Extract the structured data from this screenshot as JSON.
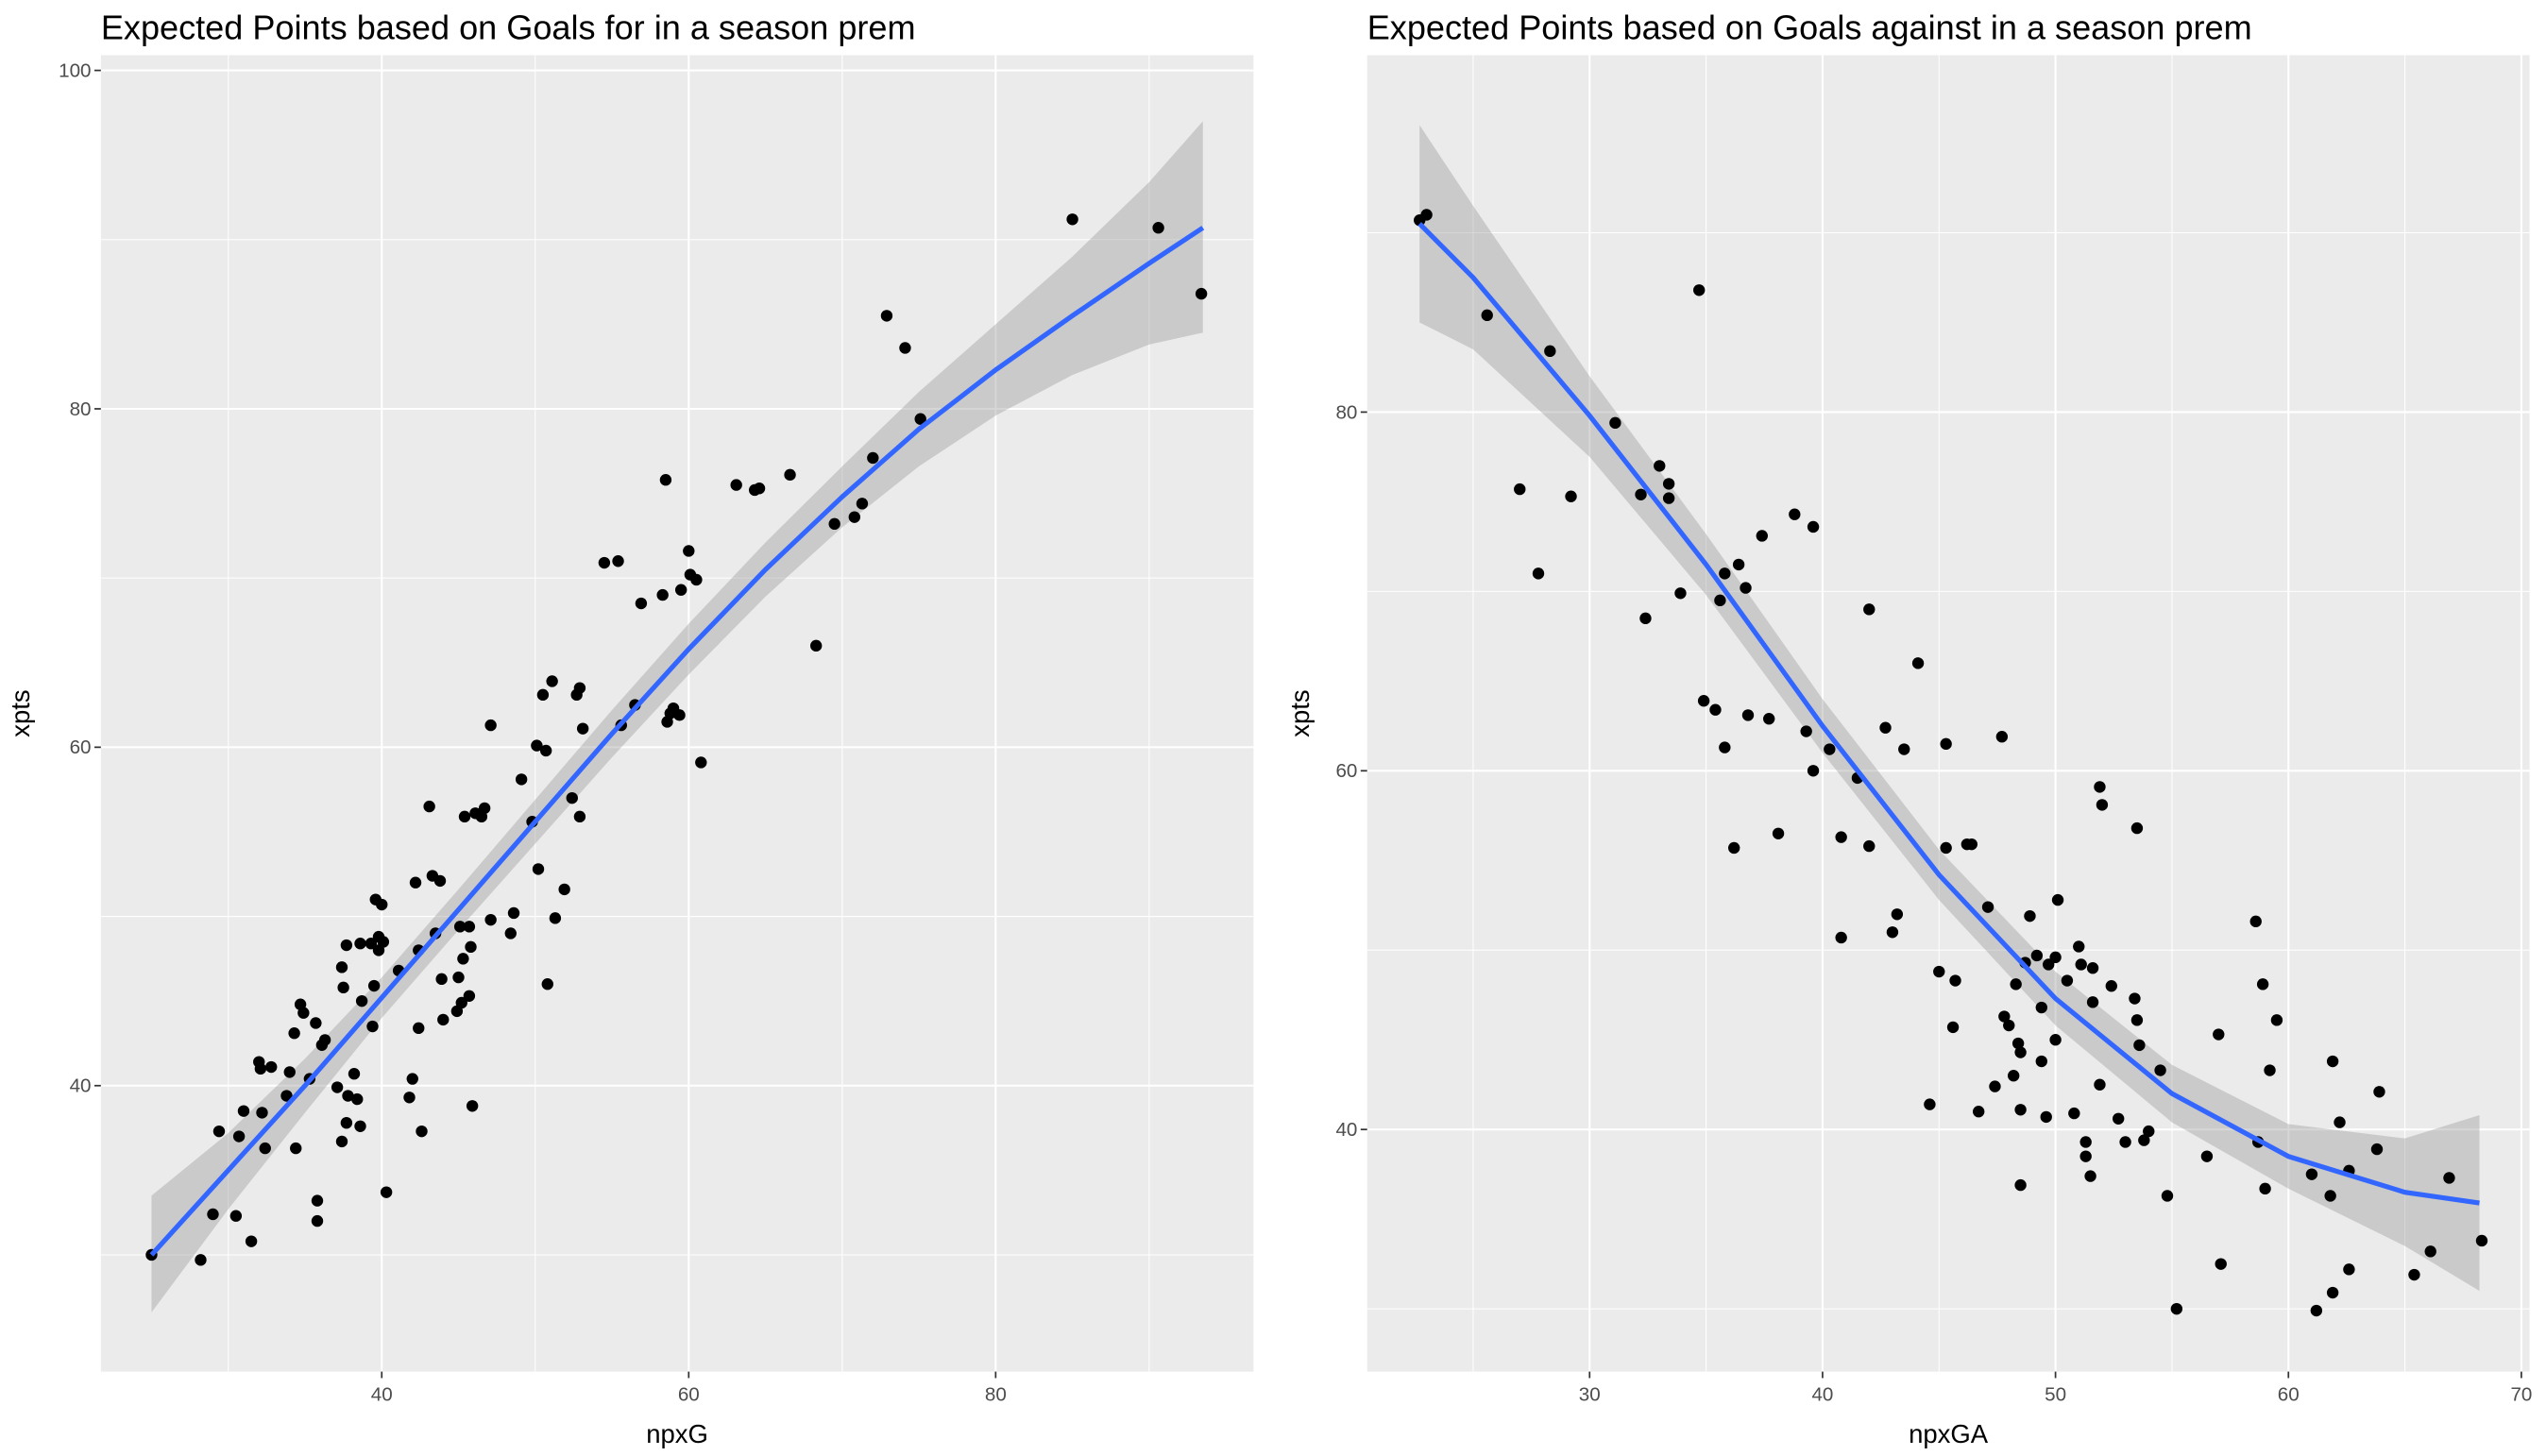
{
  "chart_data": [
    {
      "type": "scatter",
      "title": "Expected Points based on Goals for in a season prem",
      "x_label": "npxG",
      "y_label": "xpts",
      "xlim": [
        21.7,
        96.8
      ],
      "ylim": [
        23.1,
        100.9
      ],
      "xticks": [
        40,
        60,
        80
      ],
      "yticks": [
        40,
        60,
        80,
        100
      ],
      "x_minor_grid": [
        30,
        50,
        70,
        90
      ],
      "y_minor_grid": [
        30,
        50,
        70,
        90
      ],
      "point_color": "#000000",
      "line_color": "#3366ff",
      "band_color": "#999999",
      "panel_color": "#ebebeb",
      "x": [
        25.0,
        28.2,
        29.0,
        29.4,
        30.5,
        30.7,
        31.0,
        31.5,
        32.0,
        32.2,
        32.4,
        32.1,
        32.8,
        33.8,
        34.0,
        34.4,
        34.3,
        34.7,
        34.9,
        35.3,
        35.8,
        35.8,
        35.7,
        36.1,
        36.3,
        37.1,
        37.4,
        37.4,
        37.5,
        37.7,
        37.7,
        37.8,
        38.2,
        38.4,
        38.6,
        38.6,
        38.7,
        39.3,
        39.5,
        39.4,
        39.6,
        39.8,
        39.8,
        40.0,
        40.1,
        40.3,
        41.1,
        41.8,
        42.0,
        42.2,
        42.4,
        42.4,
        42.6,
        43.1,
        43.3,
        43.5,
        43.8,
        43.9,
        44.0,
        44.9,
        45.0,
        45.1,
        45.3,
        45.2,
        45.4,
        45.7,
        45.7,
        45.8,
        45.9,
        46.1,
        46.5,
        46.7,
        47.1,
        47.1,
        48.4,
        48.6,
        49.1,
        49.8,
        50.1,
        50.2,
        50.5,
        50.8,
        50.7,
        51.1,
        51.3,
        51.9,
        52.4,
        52.7,
        52.9,
        52.9,
        53.1,
        54.5,
        55.4,
        55.6,
        56.5,
        56.9,
        58.3,
        58.5,
        58.6,
        58.8,
        59.0,
        59.4,
        59.5,
        60.0,
        60.1,
        60.5,
        60.8,
        63.1,
        64.3,
        64.6,
        66.6,
        68.3,
        69.5,
        70.8,
        71.3,
        72.0,
        72.9,
        74.1,
        75.1,
        85.0,
        90.6,
        93.4
      ],
      "y": [
        30.0,
        29.7,
        32.4,
        37.3,
        32.3,
        37.0,
        38.5,
        30.8,
        41.4,
        38.4,
        36.3,
        41.0,
        41.1,
        39.4,
        40.8,
        36.3,
        43.1,
        44.8,
        44.3,
        40.4,
        33.2,
        32.0,
        43.7,
        42.4,
        42.7,
        39.9,
        36.7,
        47.0,
        45.8,
        48.3,
        37.8,
        39.4,
        40.7,
        39.2,
        48.4,
        37.6,
        45.0,
        48.4,
        45.9,
        43.5,
        51.0,
        48.0,
        48.8,
        50.7,
        48.5,
        33.7,
        46.8,
        39.3,
        40.4,
        52.0,
        43.4,
        48.0,
        37.3,
        56.5,
        52.4,
        49.0,
        52.1,
        46.3,
        43.9,
        44.4,
        46.4,
        49.4,
        47.5,
        44.9,
        55.9,
        45.3,
        49.4,
        48.2,
        38.8,
        56.1,
        55.9,
        56.4,
        49.8,
        61.3,
        49.0,
        50.2,
        58.1,
        55.6,
        60.1,
        52.8,
        63.1,
        46.0,
        59.8,
        63.9,
        49.9,
        51.6,
        57.0,
        63.1,
        63.5,
        55.9,
        61.1,
        70.9,
        71.0,
        61.3,
        62.5,
        68.5,
        69.0,
        75.8,
        61.5,
        62.0,
        62.3,
        61.9,
        69.3,
        71.6,
        70.2,
        69.9,
        59.1,
        75.5,
        75.2,
        75.3,
        76.1,
        66.0,
        73.2,
        73.6,
        74.4,
        77.1,
        85.5,
        83.6,
        79.4,
        91.2,
        90.7,
        86.8
      ],
      "fit": {
        "x": [
          25,
          30,
          35,
          40,
          45,
          50,
          55,
          60,
          65,
          70,
          75,
          80,
          85,
          90,
          93.5
        ],
        "y": [
          30,
          35,
          40,
          45.2,
          50.4,
          55.6,
          60.8,
          65.8,
          70.5,
          74.8,
          78.8,
          82.3,
          85.5,
          88.6,
          90.7
        ],
        "lower": [
          26.6,
          32.7,
          38.4,
          44,
          49.2,
          54.3,
          59.4,
          64.3,
          68.9,
          73,
          76.6,
          79.6,
          82,
          83.8,
          84.5
        ],
        "upper": [
          33.5,
          37.2,
          41.6,
          46.4,
          51.6,
          56.9,
          62.2,
          67.3,
          72.1,
          76.6,
          81,
          85,
          89,
          93.4,
          97
        ]
      }
    },
    {
      "type": "scatter",
      "title": "Expected Points based on Goals against in a season prem",
      "x_label": "npxGA",
      "y_label": "xpts",
      "xlim": [
        20.45,
        70.35
      ],
      "ylim": [
        26.5,
        99.9
      ],
      "xticks": [
        30,
        40,
        50,
        60,
        70
      ],
      "yticks": [
        40,
        60,
        80
      ],
      "x_minor_grid": [
        25,
        35,
        45,
        55,
        65
      ],
      "y_minor_grid": [
        30,
        50,
        70,
        90
      ],
      "point_color": "#000000",
      "line_color": "#3366ff",
      "band_color": "#999999",
      "panel_color": "#ebebeb",
      "x": [
        22.7,
        23.0,
        25.6,
        27.0,
        27.8,
        28.3,
        29.2,
        31.1,
        32.4,
        32.2,
        33.0,
        33.4,
        33.4,
        33.9,
        34.7,
        34.9,
        35.4,
        35.6,
        35.8,
        35.8,
        36.2,
        36.4,
        36.7,
        36.8,
        37.4,
        37.7,
        38.1,
        38.8,
        39.6,
        39.3,
        39.6,
        40.3,
        40.8,
        40.8,
        41.5,
        42.0,
        42.0,
        42.7,
        43.0,
        43.2,
        43.5,
        44.1,
        44.6,
        45.0,
        45.3,
        45.3,
        45.6,
        45.7,
        46.2,
        46.4,
        46.7,
        47.1,
        47.4,
        47.7,
        47.8,
        48.0,
        48.2,
        48.3,
        48.4,
        48.5,
        48.5,
        48.5,
        48.7,
        48.9,
        49.2,
        49.4,
        49.4,
        49.6,
        49.7,
        50.0,
        50.0,
        50.1,
        50.5,
        50.8,
        51.0,
        51.1,
        51.3,
        51.3,
        51.5,
        51.6,
        51.6,
        51.9,
        51.9,
        52.0,
        52.4,
        52.7,
        53.0,
        53.4,
        53.5,
        53.5,
        53.6,
        53.8,
        54.0,
        54.5,
        54.8,
        55.2,
        56.5,
        57.0,
        57.1,
        58.6,
        58.7,
        58.9,
        59.0,
        59.2,
        59.5,
        61.0,
        61.2,
        61.8,
        61.9,
        61.9,
        62.2,
        62.6,
        62.6,
        63.8,
        63.9,
        65.4,
        66.1,
        66.9,
        68.3
      ],
      "y": [
        90.7,
        91.0,
        85.4,
        75.7,
        71.0,
        83.4,
        75.3,
        79.4,
        68.5,
        75.4,
        77.0,
        76.0,
        75.2,
        69.9,
        86.8,
        63.9,
        63.4,
        69.5,
        71.0,
        61.3,
        55.7,
        71.5,
        70.2,
        63.1,
        73.1,
        62.9,
        56.5,
        74.3,
        73.6,
        62.2,
        60.0,
        61.2,
        56.3,
        50.7,
        59.6,
        69.0,
        55.8,
        62.4,
        51.0,
        52.0,
        61.2,
        66.0,
        41.4,
        48.8,
        55.7,
        61.5,
        45.7,
        48.3,
        55.9,
        55.9,
        41.0,
        52.4,
        42.4,
        61.9,
        46.3,
        45.8,
        43.0,
        48.1,
        44.8,
        44.3,
        41.1,
        36.9,
        49.3,
        51.9,
        49.7,
        46.8,
        43.8,
        40.7,
        49.2,
        49.6,
        45.0,
        52.8,
        48.3,
        40.9,
        50.2,
        49.2,
        39.3,
        38.5,
        37.4,
        49.0,
        47.1,
        42.5,
        59.1,
        58.1,
        48.0,
        40.6,
        39.3,
        47.3,
        46.1,
        56.8,
        44.7,
        39.4,
        39.9,
        43.3,
        36.3,
        30.0,
        38.5,
        45.3,
        32.5,
        51.6,
        39.3,
        48.1,
        36.7,
        43.3,
        46.1,
        37.5,
        29.9,
        36.3,
        43.8,
        30.9,
        40.4,
        32.2,
        37.7,
        38.9,
        42.1,
        31.9,
        33.2,
        37.3,
        33.8
      ],
      "fit": {
        "x": [
          22.7,
          25,
          30,
          35,
          40,
          45,
          50,
          55,
          60,
          65,
          68.2
        ],
        "y": [
          90.5,
          87.5,
          79.8,
          71.5,
          62.5,
          54.2,
          47.3,
          42,
          38.5,
          36.5,
          35.9
        ],
        "lower": [
          85,
          83.5,
          77.5,
          69.8,
          61,
          52.8,
          45.8,
          40.4,
          36.7,
          33.5,
          31
        ],
        "upper": [
          96,
          91.5,
          82,
          73.2,
          64,
          55.6,
          48.8,
          43.6,
          40.3,
          39.5,
          40.8
        ]
      }
    }
  ]
}
